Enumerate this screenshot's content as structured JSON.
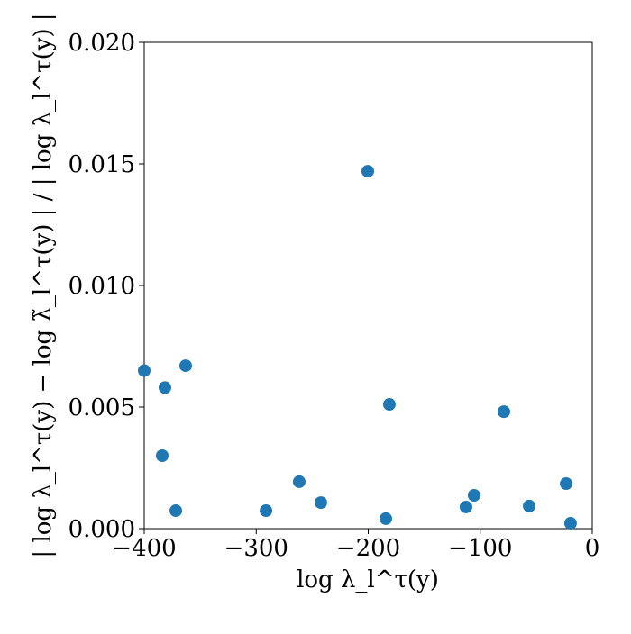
{
  "chart_data": {
    "type": "scatter",
    "x_label": "log λ_l^τ(y)",
    "y_label": "| log λ_l^τ(y) − log λ̃_l^τ(y) | / | log λ_l^τ(y) |",
    "color": "#1f77b4",
    "x": [
      -400,
      -381.5,
      -363,
      -383.9,
      -371.8,
      -291.3,
      -261.6,
      -242.3,
      -200.4,
      -181.1,
      -184.3,
      -112.7,
      -105.5,
      -78.9,
      -56.3,
      -23.3,
      -19.4
    ],
    "values": [
      0.0065,
      0.0058,
      0.0067,
      0.003,
      0.00074,
      0.00074,
      0.00193,
      0.00107,
      0.0147,
      0.00511,
      0.00041,
      0.00089,
      0.00137,
      0.00481,
      0.00093,
      0.00185,
      0.00022
    ],
    "xlim": [
      -400,
      0
    ],
    "ylim": [
      0,
      0.02
    ],
    "xticks": [
      {
        "value": -400,
        "label": "−400"
      },
      {
        "value": -300,
        "label": "−300"
      },
      {
        "value": -200,
        "label": "−200"
      },
      {
        "value": -100,
        "label": "−100"
      },
      0
    ],
    "yticks": [
      {
        "value": 0,
        "label": "0.000"
      },
      {
        "value": 0.005,
        "label": "0.005"
      },
      {
        "value": 0.01,
        "label": "0.010"
      },
      {
        "value": 0.015,
        "label": "0.015"
      },
      {
        "value": 0.02,
        "label": "0.020"
      }
    ]
  }
}
